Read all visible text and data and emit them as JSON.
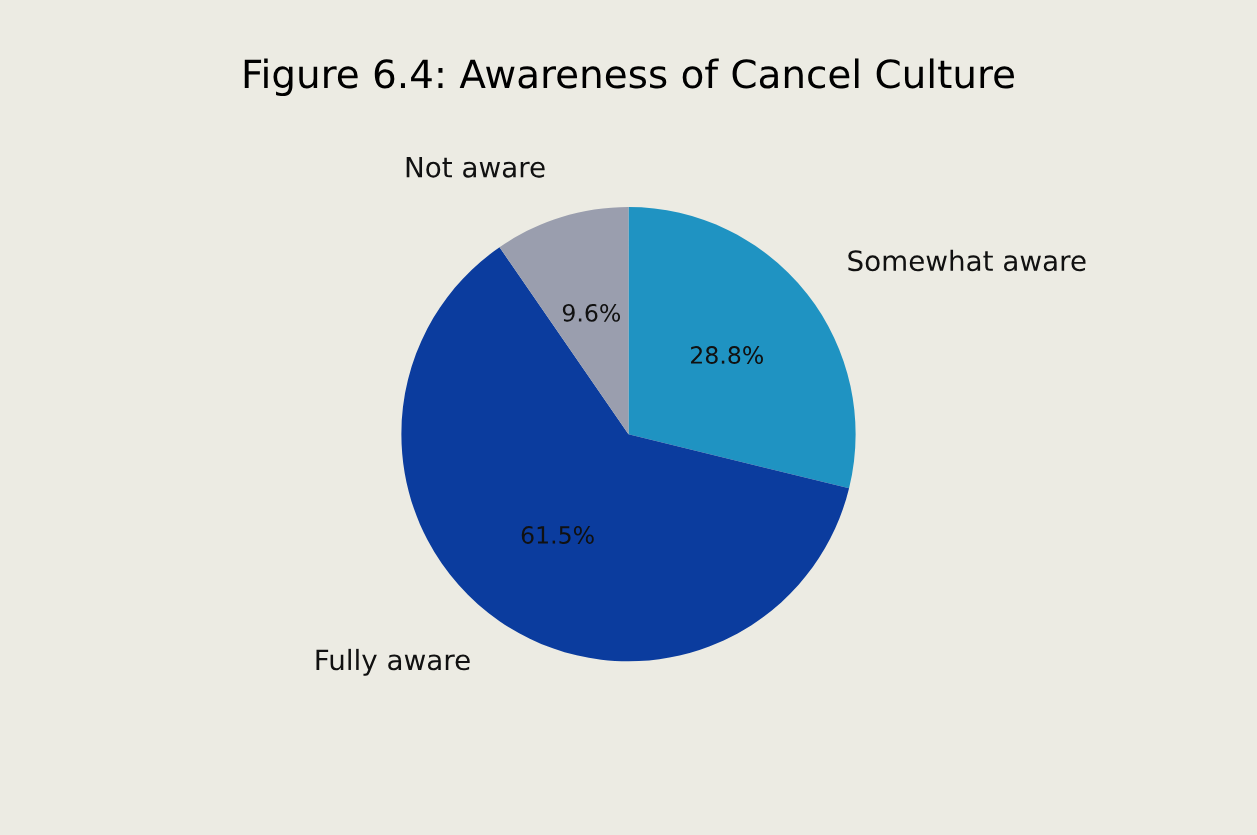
{
  "chart_data": {
    "type": "pie",
    "title": "Figure 6.4: Awareness of Cancel Culture",
    "categories": [
      "Somewhat aware",
      "Fully aware",
      "Not aware"
    ],
    "values": [
      28.8,
      61.5,
      9.6
    ],
    "value_labels": [
      "28.8%",
      "61.5%",
      "9.6%"
    ],
    "colors": [
      "#1f93c2",
      "#0b3c9e",
      "#9a9eae"
    ],
    "legend": false
  }
}
